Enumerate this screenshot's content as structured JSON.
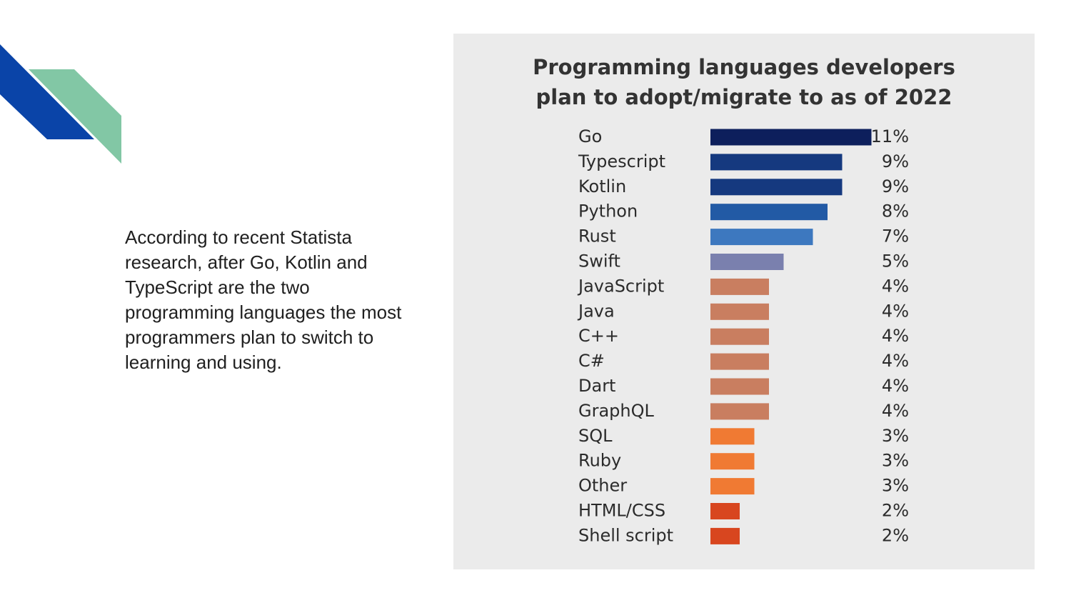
{
  "slide": {
    "body_text": "According to recent Statista research, after Go, Kotlin and TypeScript are the two programming languages the most programmers plan to switch to learning and using."
  },
  "colors": {
    "deco_blue": "#0a44a8",
    "deco_green": "#82c7a5",
    "panel_bg": "#ebebeb"
  },
  "chart_data": {
    "type": "bar",
    "orientation": "horizontal",
    "title": "Programming languages developers\nplan to adopt/migrate to as of 2022",
    "categories": [
      "Go",
      "Typescript",
      "Kotlin",
      "Python",
      "Rust",
      "Swift",
      "JavaScript",
      "Java",
      "C++",
      "C#",
      "Dart",
      "GraphQL",
      "SQL",
      "Ruby",
      "Other",
      "HTML/CSS",
      "Shell script"
    ],
    "values": [
      11,
      9,
      9,
      8,
      7,
      5,
      4,
      4,
      4,
      4,
      4,
      4,
      3,
      3,
      3,
      2,
      2
    ],
    "value_labels": [
      "11%",
      "9%",
      "9%",
      "8%",
      "7%",
      "5%",
      "4%",
      "4%",
      "4%",
      "4%",
      "4%",
      "4%",
      "3%",
      "3%",
      "3%",
      "2%",
      "2%"
    ],
    "bar_colors": [
      "#0d1f5c",
      "#15397f",
      "#15397f",
      "#225aa5",
      "#3d78bf",
      "#7a80ae",
      "#c97e60",
      "#c97e60",
      "#c97e60",
      "#c97e60",
      "#c97e60",
      "#c97e60",
      "#f07a33",
      "#f07a33",
      "#f07a33",
      "#d8461f",
      "#d8461f"
    ],
    "unit": "%",
    "grid": false,
    "legend": "none"
  }
}
